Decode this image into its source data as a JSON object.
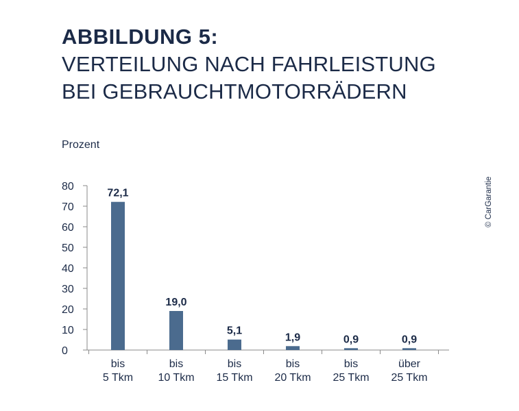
{
  "heading": {
    "figure_label": "ABBILDUNG 5:",
    "title": "VERTEILUNG NACH FAHRLEISTUNG BEI GEBRAUCHTMOTORRÄDERN"
  },
  "credit": "© CarGarantie",
  "colors": {
    "bar": "#4b6b8e",
    "text": "#1b2a47",
    "axis": "#8a8a8a"
  },
  "chart_data": {
    "type": "bar",
    "ylabel": "Prozent",
    "ylim": [
      0,
      80
    ],
    "yticks": [
      0,
      10,
      20,
      30,
      40,
      50,
      60,
      70,
      80
    ],
    "grid": false,
    "categories": [
      [
        "bis",
        "5 Tkm"
      ],
      [
        "bis",
        "10 Tkm"
      ],
      [
        "bis",
        "15 Tkm"
      ],
      [
        "bis",
        "20 Tkm"
      ],
      [
        "bis",
        "25 Tkm"
      ],
      [
        "über",
        "25 Tkm"
      ]
    ],
    "values": [
      72.1,
      19.0,
      5.1,
      1.9,
      0.9,
      0.9
    ],
    "value_labels": [
      "72,1",
      "19,0",
      "5,1",
      "1,9",
      "0,9",
      "0,9"
    ]
  }
}
